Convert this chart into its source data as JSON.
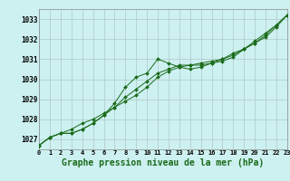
{
  "title": "Graphe pression niveau de la mer (hPa)",
  "bg_color": "#cdf0f0",
  "grid_color": "#b0c8c8",
  "line_color": "#1a6b1a",
  "x_labels": [
    "0",
    "1",
    "2",
    "3",
    "4",
    "5",
    "6",
    "7",
    "8",
    "9",
    "10",
    "11",
    "12",
    "13",
    "14",
    "15",
    "16",
    "17",
    "18",
    "19",
    "20",
    "21",
    "22",
    "23"
  ],
  "xlim": [
    0,
    23
  ],
  "ylim": [
    1026.5,
    1033.5
  ],
  "yticks": [
    1027,
    1028,
    1029,
    1030,
    1031,
    1032,
    1033
  ],
  "line1": [
    1026.7,
    1027.1,
    1027.3,
    1027.3,
    1027.5,
    1027.8,
    1028.2,
    1028.8,
    1029.6,
    1030.1,
    1030.3,
    1031.0,
    1030.8,
    1030.6,
    1030.5,
    1030.6,
    1030.8,
    1031.0,
    1031.3,
    1031.5,
    1031.8,
    1032.1,
    1032.6,
    1033.2
  ],
  "line2": [
    1026.7,
    1027.1,
    1027.3,
    1027.3,
    1027.5,
    1027.8,
    1028.2,
    1028.6,
    1029.1,
    1029.5,
    1029.9,
    1030.3,
    1030.5,
    1030.7,
    1030.7,
    1030.7,
    1030.8,
    1030.9,
    1031.1,
    1031.5,
    1031.8,
    1032.2,
    1032.7,
    1033.2
  ],
  "line3": [
    1026.7,
    1027.1,
    1027.3,
    1027.5,
    1027.8,
    1028.0,
    1028.3,
    1028.6,
    1028.9,
    1029.2,
    1029.6,
    1030.1,
    1030.4,
    1030.6,
    1030.7,
    1030.8,
    1030.9,
    1031.0,
    1031.2,
    1031.5,
    1031.9,
    1032.3,
    1032.7,
    1033.2
  ],
  "title_fontsize": 7,
  "tick_fontsize": 5,
  "ytick_fontsize": 5.5
}
